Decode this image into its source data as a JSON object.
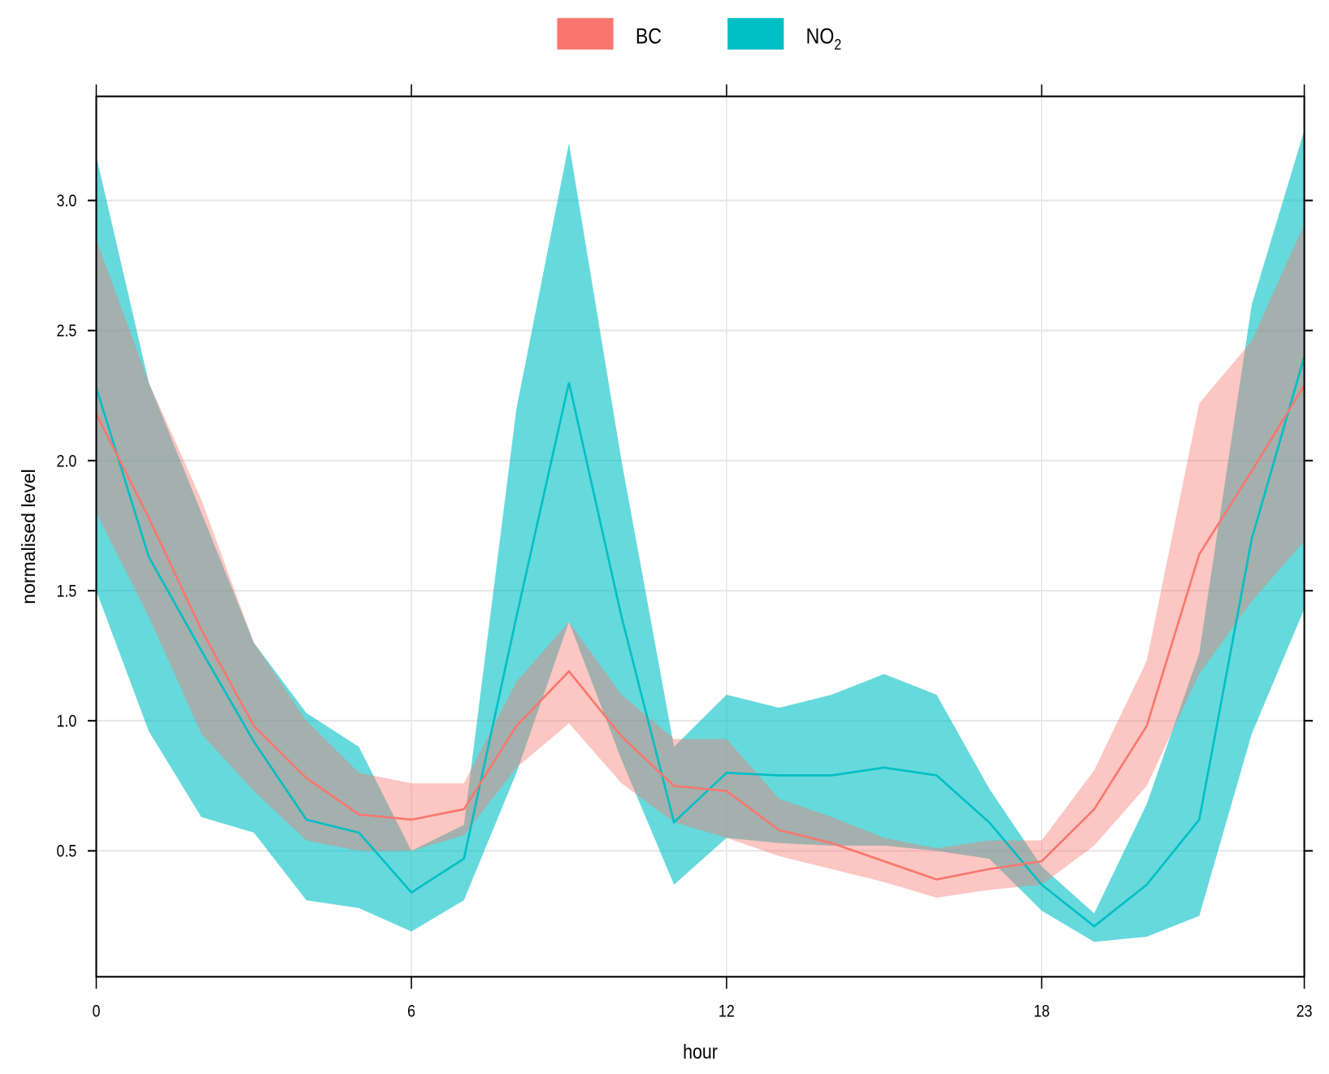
{
  "chart_data": {
    "type": "area",
    "title": "",
    "xlabel": "hour",
    "ylabel": "normalised level",
    "xlim": [
      0,
      23
    ],
    "ylim": [
      0.016,
      3.4
    ],
    "x_ticks": [
      0,
      6,
      12,
      18,
      23
    ],
    "x_tick_labels": [
      "0",
      "6",
      "12",
      "18",
      "23"
    ],
    "y_ticks": [
      0.5,
      1.0,
      1.5,
      2.0,
      2.5,
      3.0
    ],
    "y_tick_labels": [
      "0.5",
      "1.0",
      "1.5",
      "2.0",
      "2.5",
      "3.0"
    ],
    "grid": true,
    "legend_position": "top",
    "legend": [
      {
        "name": "BC",
        "main": "BC",
        "sub": "",
        "color": "#F8766D"
      },
      {
        "name": "NO2",
        "main": "NO",
        "sub": "2",
        "color": "#00BFC4"
      }
    ],
    "x": [
      0,
      1,
      2,
      3,
      4,
      5,
      6,
      7,
      8,
      9,
      10,
      11,
      12,
      13,
      14,
      15,
      16,
      17,
      18,
      19,
      20,
      21,
      22,
      23
    ],
    "series": [
      {
        "name": "NO2",
        "color": "#00BFC4",
        "mean": [
          2.28,
          1.63,
          1.27,
          0.92,
          0.62,
          0.57,
          0.34,
          0.47,
          1.4,
          2.3,
          1.4,
          0.61,
          0.8,
          0.79,
          0.79,
          0.82,
          0.79,
          0.61,
          0.37,
          0.21,
          0.37,
          0.62,
          1.7,
          2.4
        ],
        "upper": [
          3.17,
          2.3,
          1.8,
          1.3,
          1.03,
          0.9,
          0.5,
          0.6,
          2.2,
          3.22,
          2.0,
          0.9,
          1.1,
          1.05,
          1.1,
          1.18,
          1.1,
          0.74,
          0.44,
          0.26,
          0.68,
          1.26,
          2.6,
          3.27
        ],
        "lower": [
          1.5,
          0.96,
          0.63,
          0.57,
          0.31,
          0.28,
          0.19,
          0.31,
          0.8,
          1.38,
          0.85,
          0.37,
          0.55,
          0.53,
          0.52,
          0.52,
          0.5,
          0.47,
          0.27,
          0.15,
          0.17,
          0.25,
          0.95,
          1.43
        ]
      },
      {
        "name": "BC",
        "color": "#F8766D",
        "mean": [
          2.18,
          1.78,
          1.35,
          0.98,
          0.78,
          0.64,
          0.62,
          0.66,
          0.98,
          1.19,
          0.94,
          0.75,
          0.73,
          0.58,
          0.53,
          0.46,
          0.39,
          0.43,
          0.46,
          0.66,
          0.98,
          1.64,
          1.96,
          2.29
        ],
        "upper": [
          2.85,
          2.3,
          1.85,
          1.3,
          1.0,
          0.8,
          0.76,
          0.76,
          1.15,
          1.38,
          1.1,
          0.93,
          0.93,
          0.7,
          0.63,
          0.55,
          0.51,
          0.54,
          0.54,
          0.81,
          1.23,
          2.22,
          2.46,
          2.91
        ],
        "lower": [
          1.8,
          1.4,
          0.95,
          0.73,
          0.54,
          0.5,
          0.5,
          0.56,
          0.82,
          0.99,
          0.76,
          0.61,
          0.55,
          0.48,
          0.43,
          0.38,
          0.32,
          0.35,
          0.37,
          0.52,
          0.75,
          1.18,
          1.46,
          1.69
        ]
      }
    ]
  }
}
